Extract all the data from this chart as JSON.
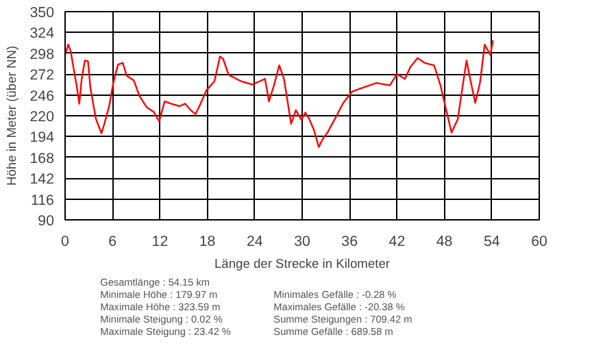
{
  "chart_data": {
    "type": "line",
    "xlabel": "Länge der Strecke in Kilometer",
    "ylabel": "Höhe in Meter (über NN)",
    "xlim": [
      0,
      60
    ],
    "xticks": [
      0,
      6,
      12,
      18,
      24,
      30,
      36,
      42,
      48,
      54,
      60
    ],
    "ylim": [
      90,
      350
    ],
    "yticks": [
      90,
      116,
      142,
      168,
      194,
      220,
      246,
      272,
      298,
      324,
      350
    ],
    "grid": true,
    "series": [
      {
        "color": "#ff0000",
        "x": [
          0,
          0.4,
          0.7,
          1.1,
          1.5,
          1.8,
          2.1,
          2.5,
          2.9,
          3.2,
          3.9,
          4.6,
          5.0,
          5.6,
          6.1,
          6.7,
          7.3,
          7.8,
          8.7,
          9.4,
          10.3,
          11.2,
          11.9,
          12.6,
          13.4,
          14.5,
          15.2,
          15.9,
          16.5,
          17.0,
          17.9,
          18.9,
          19.6,
          20.0,
          20.7,
          21.5,
          22.3,
          23.7,
          24.6,
          25.3,
          25.8,
          26.4,
          27.1,
          27.7,
          28.2,
          28.6,
          29.2,
          29.9,
          30.4,
          30.9,
          31.5,
          32.1,
          32.6,
          33.2,
          34.3,
          35.2,
          36.3,
          37.4,
          39.4,
          41.1,
          42.0,
          43.0,
          43.7,
          44.6,
          45.5,
          46.7,
          47.5,
          48.3,
          48.9,
          49.7,
          50.2,
          50.8,
          51.3,
          51.9,
          52.5,
          53.1,
          53.8,
          54.15
        ],
        "values": [
          296,
          309,
          301,
          278,
          255,
          235,
          266,
          289,
          288,
          255,
          216,
          198,
          211,
          233,
          261,
          284,
          286,
          270,
          264,
          245,
          231,
          225,
          213,
          238,
          235,
          232,
          235,
          227,
          222,
          232,
          252,
          263,
          294,
          291,
          271,
          267,
          263,
          259,
          263,
          266,
          238,
          257,
          283,
          266,
          235,
          210,
          227,
          215,
          224,
          216,
          202,
          181,
          191,
          199,
          219,
          236,
          250,
          254,
          261,
          258,
          272,
          266,
          281,
          292,
          286,
          283,
          258,
          224,
          199,
          216,
          250,
          289,
          264,
          236,
          261,
          309,
          296,
          314
        ]
      }
    ],
    "annotations": [
      "Gesamtlänge : 54.15 km",
      "Minimale Höhe : 179.97 m",
      "Maximale Höhe : 323.59 m",
      "Minimale Steigung : 0.02 %",
      "Maximale Steigung : 23.42 %",
      "Minimales Gefälle : -0.28 %",
      "Maximales Gefälle : -20.38 %",
      "Summe Steigungen : 709.42 m",
      "Summe Gefälle : 689.58 m"
    ]
  }
}
